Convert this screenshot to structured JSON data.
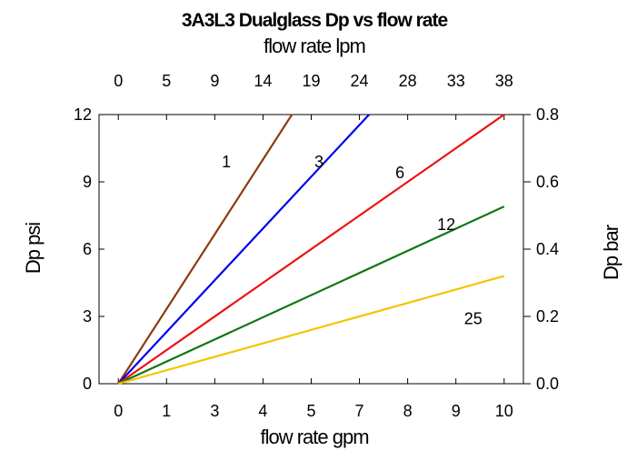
{
  "chart_data": {
    "type": "line",
    "title": "3A3L3 Dualglass Dp vs flow rate",
    "xlabel": "flow rate gpm",
    "ylabel": "Dp psi",
    "x2label": "flow rate lpm",
    "y2label": "Dp bar",
    "xlim": [
      -0.5,
      10.5
    ],
    "ylim": [
      0,
      12
    ],
    "x_ticks": [
      "0",
      "1",
      "3",
      "4",
      "5",
      "7",
      "8",
      "9",
      "10"
    ],
    "y_ticks": [
      "0",
      "3",
      "6",
      "9",
      "12"
    ],
    "x2_ticks": [
      "0",
      "5",
      "9",
      "14",
      "19",
      "24",
      "28",
      "33",
      "38"
    ],
    "y2_ticks": [
      "0.0",
      "0.2",
      "0.4",
      "0.6",
      "0.8"
    ],
    "grid": false,
    "series": [
      {
        "name": "1",
        "color": "#8B3A0F",
        "x": [
          0,
          4.5
        ],
        "y": [
          0,
          12.0
        ],
        "label_x": 2.8,
        "label_y": 9.9
      },
      {
        "name": "3",
        "color": "#0000EE",
        "x": [
          0,
          6.5
        ],
        "y": [
          0,
          12.0
        ],
        "label_x": 5.2,
        "label_y": 9.9
      },
      {
        "name": "6",
        "color": "#EE1111",
        "x": [
          0,
          10.0
        ],
        "y": [
          0,
          12.0
        ],
        "label_x": 7.3,
        "label_y": 9.4
      },
      {
        "name": "12",
        "color": "#117711",
        "x": [
          0,
          10.0
        ],
        "y": [
          0,
          7.9
        ],
        "label_x": 8.5,
        "label_y": 7.1
      },
      {
        "name": "25",
        "color": "#F2C500",
        "x": [
          0,
          10.0
        ],
        "y": [
          0,
          4.8
        ],
        "label_x": 9.2,
        "label_y": 2.9
      }
    ]
  }
}
